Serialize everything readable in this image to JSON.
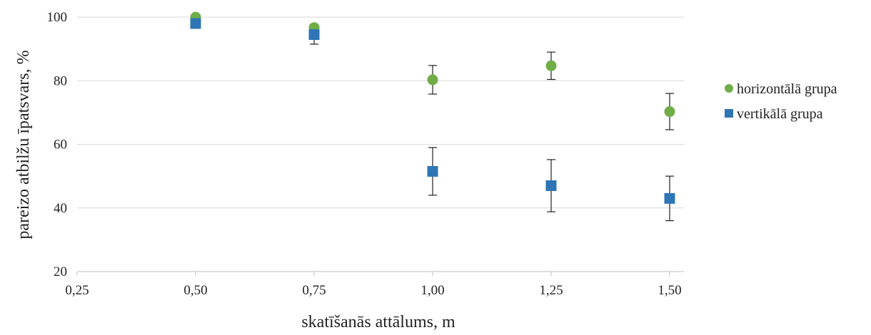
{
  "chart_data": {
    "type": "scatter",
    "title": "",
    "xlabel": "skatīšanās attālums, m",
    "ylabel": "pareizo atbilžu īpatsvars, %",
    "xlim": [
      0.25,
      1.5
    ],
    "ylim": [
      20,
      100
    ],
    "x_ticks": [
      "0,25",
      "0,50",
      "0,75",
      "1,00",
      "1,25",
      "1,50"
    ],
    "y_ticks": [
      "20",
      "40",
      "60",
      "80",
      "100"
    ],
    "grid": "horizontal",
    "legend_position": "right",
    "series": [
      {
        "name": "horizontālā grupa",
        "marker": "circle",
        "color": "#70ad47",
        "x": [
          0.5,
          0.75,
          1.0,
          1.25,
          1.5
        ],
        "y": [
          100.0,
          96.7,
          80.3,
          84.7,
          70.3
        ],
        "error": [
          0.5,
          1.0,
          4.5,
          4.3,
          5.7
        ]
      },
      {
        "name": "vertikālā grupa",
        "marker": "square",
        "color": "#2e75b6",
        "x": [
          0.5,
          0.75,
          1.0,
          1.25,
          1.5
        ],
        "y": [
          98.0,
          94.5,
          51.5,
          47.0,
          43.0
        ],
        "error": [
          1.5,
          3.0,
          7.5,
          8.2,
          7.0
        ]
      }
    ]
  }
}
